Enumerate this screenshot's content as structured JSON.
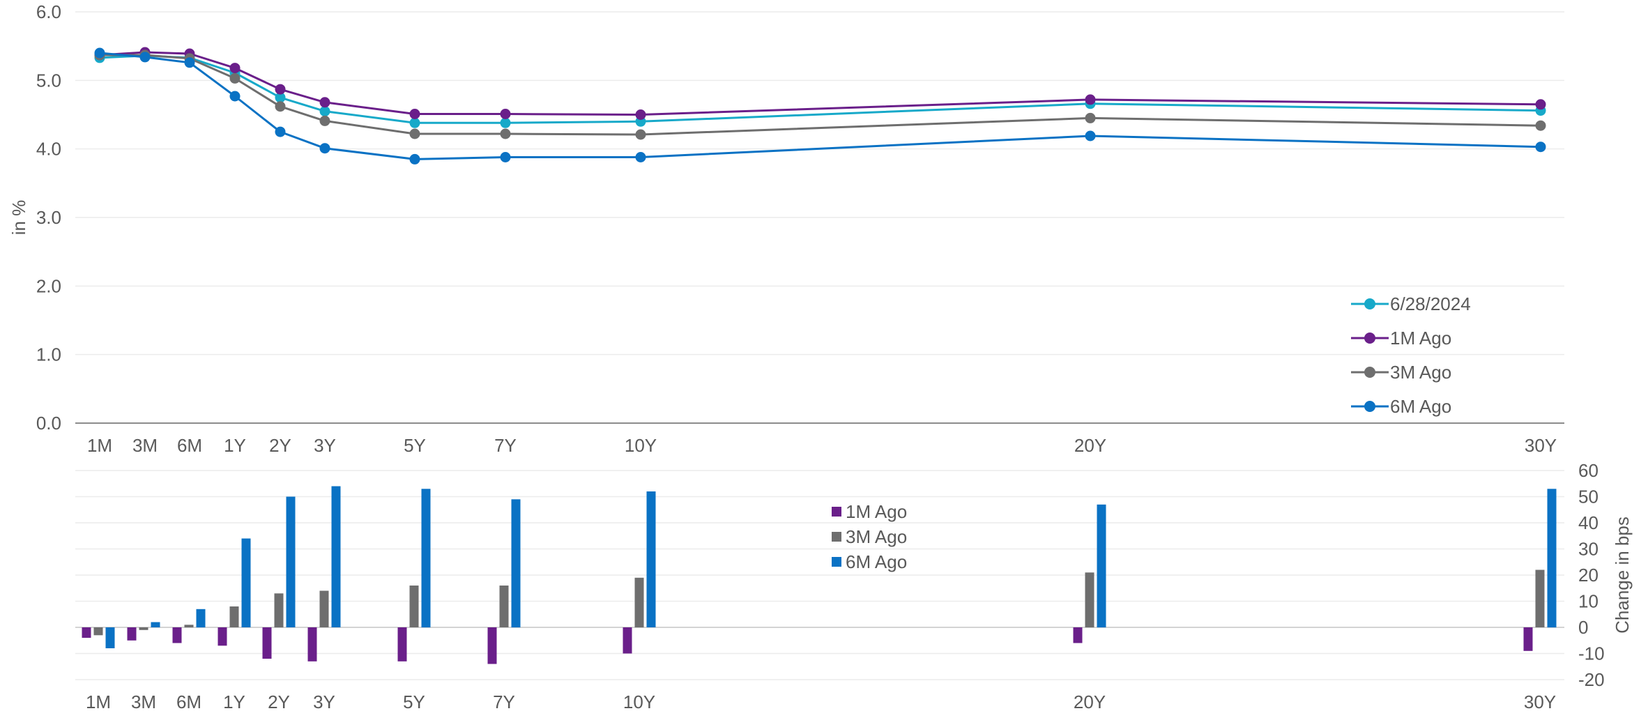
{
  "chart_data": [
    {
      "type": "line",
      "ylabel": "in %",
      "xlabel": "",
      "ylim": [
        0,
        6
      ],
      "yticks": [
        "0.0",
        "1.0",
        "2.0",
        "3.0",
        "4.0",
        "5.0",
        "6.0"
      ],
      "categories": [
        "1M",
        "3M",
        "6M",
        "1Y",
        "2Y",
        "3Y",
        "5Y",
        "7Y",
        "10Y",
        "20Y",
        "30Y"
      ],
      "x_years": [
        0.0833,
        0.25,
        0.5,
        1,
        2,
        3,
        5,
        7,
        10,
        20,
        30
      ],
      "grid": true,
      "legend_position": "bottom-right",
      "series": [
        {
          "name": "6/28/2024",
          "color": "#17a9c9",
          "values": [
            5.33,
            5.36,
            5.33,
            5.11,
            4.75,
            4.55,
            4.38,
            4.38,
            4.4,
            4.66,
            4.56
          ]
        },
        {
          "name": "1M Ago",
          "color": "#6a1f8a",
          "values": [
            5.37,
            5.41,
            5.39,
            5.18,
            4.87,
            4.68,
            4.51,
            4.51,
            4.5,
            4.72,
            4.65
          ]
        },
        {
          "name": "3M Ago",
          "color": "#6e6e6e",
          "values": [
            5.37,
            5.37,
            5.32,
            5.03,
            4.62,
            4.41,
            4.22,
            4.22,
            4.21,
            4.45,
            4.34
          ]
        },
        {
          "name": "6M Ago",
          "color": "#0a72c4",
          "values": [
            5.4,
            5.34,
            5.26,
            4.77,
            4.25,
            4.01,
            3.85,
            3.88,
            3.88,
            4.19,
            4.03
          ]
        }
      ]
    },
    {
      "type": "bar",
      "ylabel": "Change in bps",
      "xlabel": "",
      "ylim": [
        -20,
        60
      ],
      "yticks": [
        "-20",
        "-10",
        "0",
        "10",
        "20",
        "30",
        "40",
        "50",
        "60"
      ],
      "categories": [
        "1M",
        "3M",
        "6M",
        "1Y",
        "2Y",
        "3Y",
        "5Y",
        "7Y",
        "10Y",
        "20Y",
        "30Y"
      ],
      "x_years": [
        0.0833,
        0.25,
        0.5,
        1,
        2,
        3,
        5,
        7,
        10,
        20,
        30
      ],
      "grid": true,
      "legend_position": "top-center",
      "series": [
        {
          "name": "1M Ago",
          "color": "#6a1f8a",
          "values": [
            -4,
            -5,
            -6,
            -7,
            -12,
            -13,
            -13,
            -14,
            -10,
            -6,
            -9
          ]
        },
        {
          "name": "3M Ago",
          "color": "#6e6e6e",
          "values": [
            -3,
            -1,
            1,
            8,
            13,
            14,
            16,
            16,
            19,
            21,
            22
          ]
        },
        {
          "name": "6M Ago",
          "color": "#0a72c4",
          "values": [
            -8,
            2,
            7,
            34,
            50,
            54,
            53,
            49,
            52,
            47,
            53
          ]
        }
      ]
    }
  ]
}
